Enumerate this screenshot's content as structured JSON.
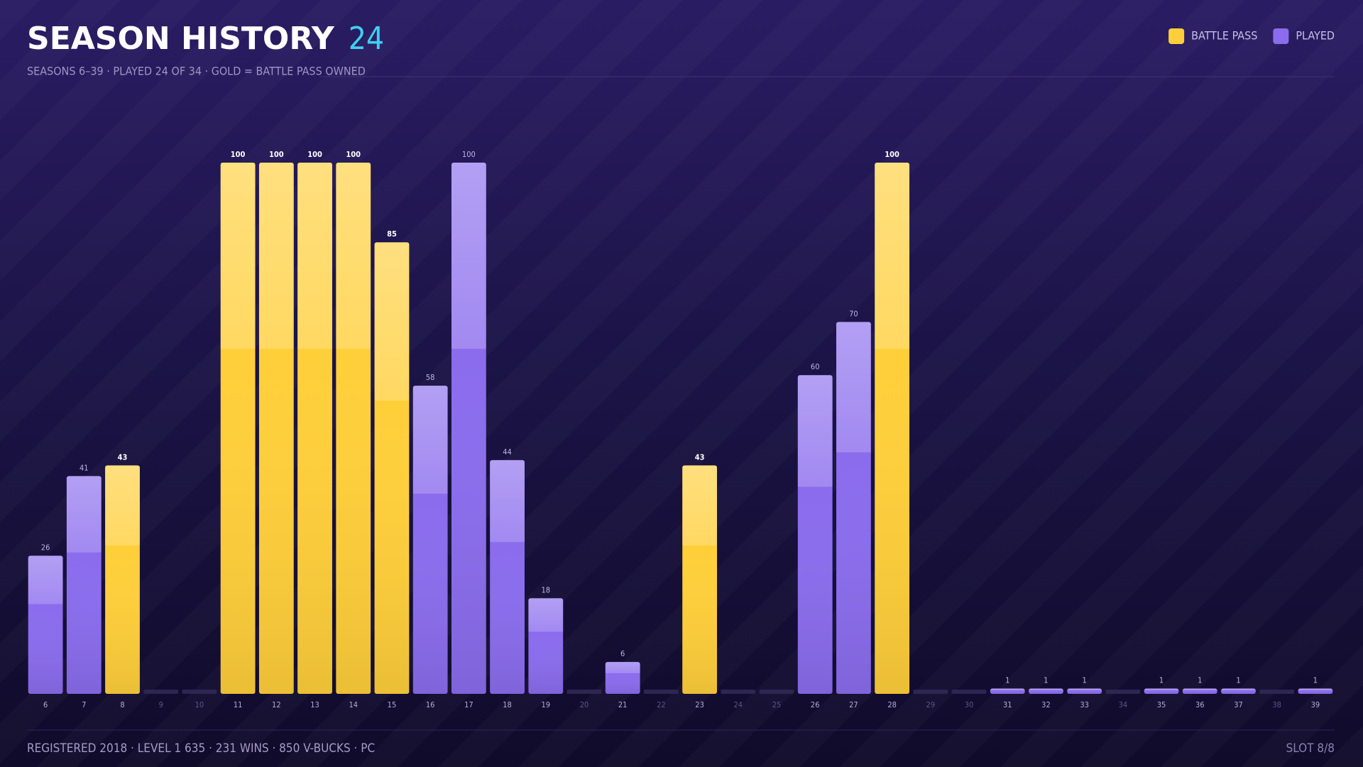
{
  "chart_data": {
    "type": "bar",
    "title": "SEASON HISTORY",
    "title_count": 24,
    "subtitle": "SEASONS 6–39 · PLAYED 24 OF 34 · GOLD = BATTLE PASS OWNED",
    "footer": "REGISTERED 2018 · LEVEL 1 635 · 231 WINS · 850 V-BUCKS · PC",
    "footer_right": "SLOT 8/8",
    "legend": "top-right",
    "ylim": [
      0,
      100
    ],
    "categories": [
      "6",
      "7",
      "8",
      "9",
      "10",
      "11",
      "12",
      "13",
      "14",
      "15",
      "16",
      "17",
      "18",
      "19",
      "20",
      "21",
      "22",
      "23",
      "24",
      "25",
      "26",
      "27",
      "28",
      "29",
      "30",
      "31",
      "32",
      "33",
      "34",
      "35",
      "36",
      "37",
      "38",
      "39"
    ],
    "series": [
      {
        "name": "BATTLE PASS",
        "color": "#ffcf3a",
        "values": [
          null,
          null,
          43,
          null,
          null,
          100,
          100,
          100,
          100,
          85,
          null,
          null,
          null,
          null,
          null,
          null,
          null,
          43,
          null,
          null,
          null,
          null,
          100,
          null,
          null,
          null,
          null,
          null,
          null,
          null,
          null,
          null,
          null,
          null
        ]
      },
      {
        "name": "PLAYED",
        "color": "#8a6ced",
        "values": [
          26,
          41,
          null,
          null,
          null,
          null,
          null,
          null,
          null,
          null,
          58,
          100,
          44,
          18,
          null,
          6,
          null,
          null,
          null,
          null,
          60,
          70,
          null,
          null,
          null,
          1,
          1,
          1,
          null,
          1,
          1,
          1,
          null,
          1
        ]
      }
    ]
  }
}
